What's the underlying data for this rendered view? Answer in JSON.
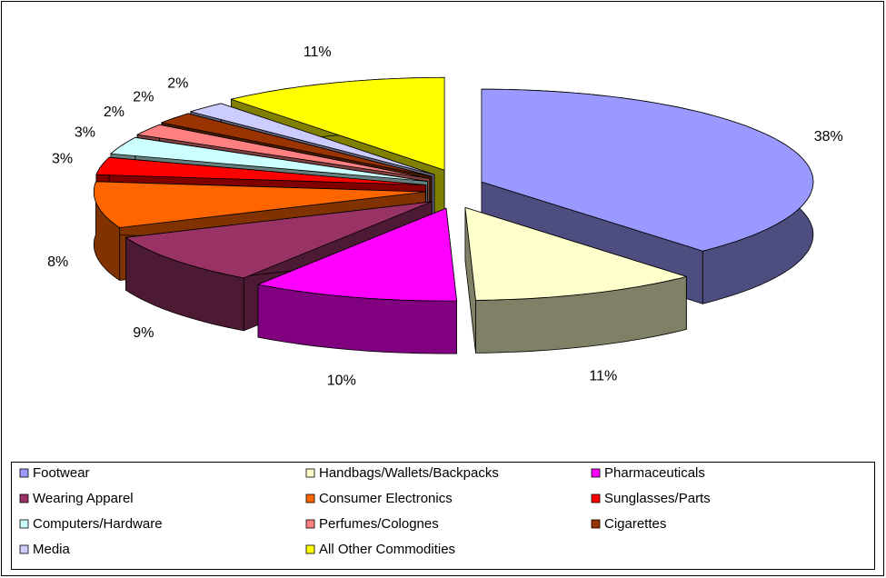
{
  "chart_data": {
    "type": "pie",
    "categories": [
      "Footwear",
      "Handbags/Wallets/Backpacks",
      "Pharmaceuticals",
      "Wearing Apparel",
      "Consumer Electronics",
      "Sunglasses/Parts",
      "Computers/Hardware",
      "Perfumes/Colognes",
      "Cigarettes",
      "Media",
      "All Other Commodities"
    ],
    "values": [
      38,
      11,
      10,
      9,
      8,
      3,
      3,
      2,
      2,
      2,
      11
    ],
    "value_labels": [
      "38%",
      "11%",
      "10%",
      "9%",
      "8%",
      "3%",
      "3%",
      "2%",
      "2%",
      "2%",
      "11%"
    ],
    "colors": [
      "#9999ff",
      "#ffffcc",
      "#ff00ff",
      "#993366",
      "#ff6600",
      "#ff0000",
      "#ccffff",
      "#ff8080",
      "#993300",
      "#ccccff",
      "#ffff00"
    ],
    "legend": "bottom"
  }
}
